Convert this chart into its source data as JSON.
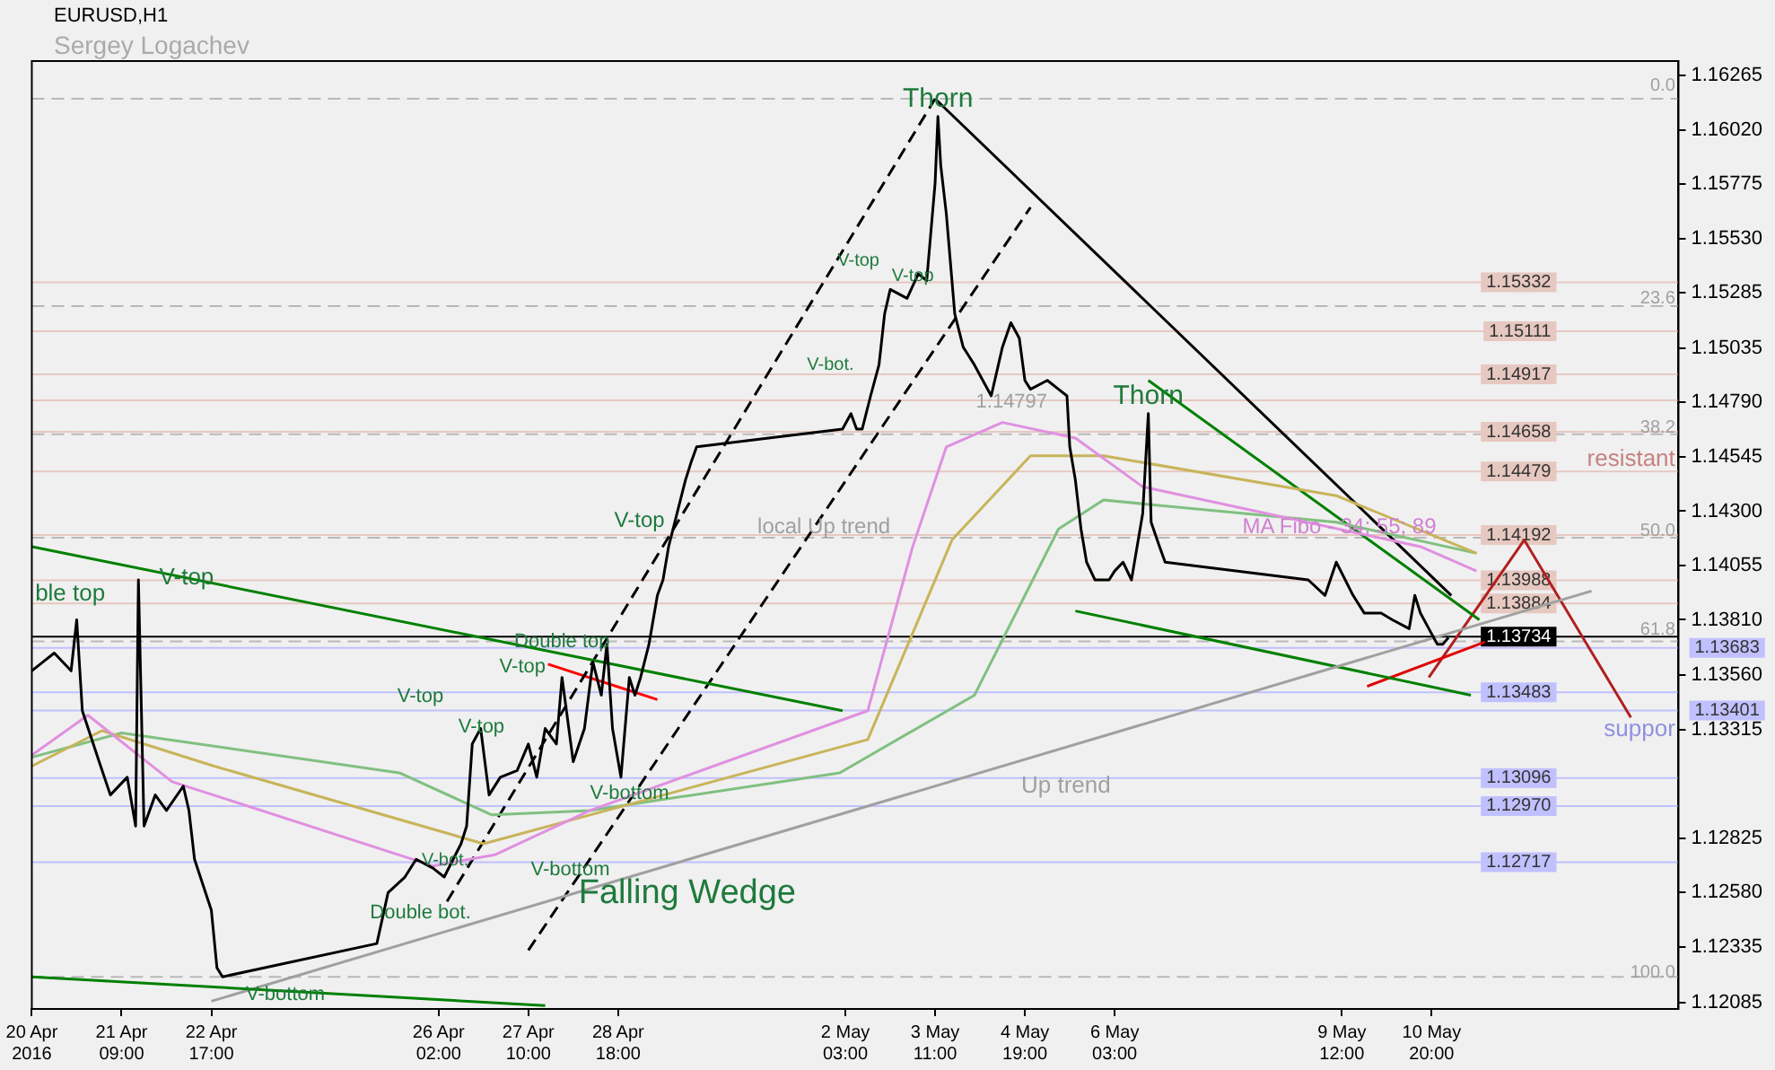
{
  "chart_data": {
    "type": "line",
    "title": "EURUSD,H1",
    "subtitle": "Sergey Logachev",
    "xlim": [
      "2016-04-20T01:00",
      "2016-05-14T12:00"
    ],
    "ylim": [
      1.12055,
      1.1633
    ],
    "xticks": [
      {
        "value": "2016-04-20T01:00",
        "label": "20 Apr 2016"
      },
      {
        "value": "2016-04-21T09:00",
        "label": "21 Apr 09:00"
      },
      {
        "value": "2016-04-22T17:00",
        "label": "22 Apr 17:00"
      },
      {
        "value": "2016-04-26T02:00",
        "label": "26 Apr 02:00"
      },
      {
        "value": "2016-04-27T10:00",
        "label": "27 Apr 10:00"
      },
      {
        "value": "2016-04-28T18:00",
        "label": "28 Apr 18:00"
      },
      {
        "value": "2016-05-02T03:00",
        "label": "2 May 03:00"
      },
      {
        "value": "2016-05-03T11:00",
        "label": "3 May 11:00"
      },
      {
        "value": "2016-05-04T19:00",
        "label": "4 May 19:00"
      },
      {
        "value": "2016-05-06T03:00",
        "label": "6 May 03:00"
      },
      {
        "value": "2016-05-09T12:00",
        "label": "9 May 12:00"
      },
      {
        "value": "2016-05-10T20:00",
        "label": "10 May 20:00"
      }
    ],
    "yticks": [
      {
        "value": 1.16265,
        "label": "1.16265"
      },
      {
        "value": 1.1602,
        "label": "1.16020"
      },
      {
        "value": 1.15775,
        "label": "1.15775"
      },
      {
        "value": 1.1553,
        "label": "1.15530"
      },
      {
        "value": 1.15285,
        "label": "1.15285"
      },
      {
        "value": 1.15035,
        "label": "1.15035"
      },
      {
        "value": 1.1479,
        "label": "1.14790"
      },
      {
        "value": 1.14545,
        "label": "1.14545"
      },
      {
        "value": 1.143,
        "label": "1.14300"
      },
      {
        "value": 1.14055,
        "label": "1.14055"
      },
      {
        "value": 1.1381,
        "label": "1.13810"
      },
      {
        "value": 1.1356,
        "label": "1.13560"
      },
      {
        "value": 1.13315,
        "label": "1.13315"
      },
      {
        "value": 1.12825,
        "label": "1.12825"
      },
      {
        "value": 1.1258,
        "label": "1.12580"
      },
      {
        "value": 1.12335,
        "label": "1.12335"
      },
      {
        "value": 1.12085,
        "label": "1.12085"
      }
    ],
    "grid": false,
    "legend": false,
    "marker": "none",
    "series": [
      {
        "color": "#000000",
        "x": [
          "2016-04-20T01:00",
          "2016-04-20T05:00",
          "2016-04-20T09:00",
          "2016-04-20T15:00",
          "2016-04-20T17:00",
          "2016-04-20T19:00",
          "2016-04-21T01:00",
          "2016-04-21T05:00",
          "2016-04-21T11:00",
          "2016-04-21T14:00",
          "2016-04-21T15:00",
          "2016-04-21T17:00",
          "2016-04-21T21:00",
          "2016-04-22T01:00",
          "2016-04-22T07:00",
          "2016-04-22T09:00",
          "2016-04-22T11:00",
          "2016-04-22T17:00",
          "2016-04-22T19:00",
          "2016-04-22T21:00",
          "2016-04-25T04:00",
          "2016-04-25T08:00",
          "2016-04-25T14:00",
          "2016-04-25T18:00",
          "2016-04-26T00:00",
          "2016-04-26T04:00",
          "2016-04-26T10:00",
          "2016-04-26T12:00",
          "2016-04-26T14:00",
          "2016-04-26T17:00",
          "2016-04-26T20:00",
          "2016-04-27T00:00",
          "2016-04-27T06:00",
          "2016-04-27T10:00",
          "2016-04-27T13:00",
          "2016-04-27T16:00",
          "2016-04-27T20:00",
          "2016-04-27T22:00",
          "2016-04-28T02:00",
          "2016-04-28T06:00",
          "2016-04-28T09:00",
          "2016-04-28T12:00",
          "2016-04-28T14:00",
          "2016-04-28T16:00",
          "2016-04-28T19:00",
          "2016-04-28T22:00",
          "2016-04-29T00:00",
          "2016-04-29T02:00",
          "2016-04-29T05:00",
          "2016-04-29T08:00",
          "2016-04-29T10:00",
          "2016-04-29T12:00",
          "2016-04-29T15:00",
          "2016-04-29T18:00",
          "2016-04-29T20:00",
          "2016-04-29T22:00",
          "2016-05-02T02:00",
          "2016-05-02T05:00",
          "2016-05-02T07:00",
          "2016-05-02T09:00",
          "2016-05-02T12:00",
          "2016-05-02T15:00",
          "2016-05-02T17:00",
          "2016-05-02T19:00",
          "2016-05-03T01:00",
          "2016-05-03T05:00",
          "2016-05-03T08:00",
          "2016-05-03T11:00",
          "2016-05-03T12:00",
          "2016-05-03T13:00",
          "2016-05-03T15:00",
          "2016-05-03T18:00",
          "2016-05-03T21:00",
          "2016-05-03T23:00",
          "2016-05-04T01:00",
          "2016-05-04T04:00",
          "2016-05-04T07:00",
          "2016-05-04T11:00",
          "2016-05-04T14:00",
          "2016-05-04T17:00",
          "2016-05-04T19:00",
          "2016-05-04T21:00",
          "2016-05-05T03:00",
          "2016-05-05T07:00",
          "2016-05-05T10:00",
          "2016-05-05T11:00",
          "2016-05-05T13:00",
          "2016-05-05T15:00",
          "2016-05-05T17:00",
          "2016-05-05T20:00",
          "2016-05-05T23:00",
          "2016-05-06T01:00",
          "2016-05-06T03:00",
          "2016-05-06T06:00",
          "2016-05-06T09:00",
          "2016-05-06T11:00",
          "2016-05-06T13:00",
          "2016-05-06T15:00",
          "2016-05-06T16:00",
          "2016-05-06T19:00",
          "2016-05-06T21:00",
          "2016-05-09T00:00",
          "2016-05-09T06:00",
          "2016-05-09T10:00",
          "2016-05-09T16:00",
          "2016-05-09T20:00",
          "2016-05-10T02:00",
          "2016-05-10T06:00",
          "2016-05-10T12:00",
          "2016-05-10T14:00",
          "2016-05-10T16:00",
          "2016-05-10T19:00",
          "2016-05-10T22:00",
          "2016-05-11T00:00",
          "2016-05-11T02:00"
        ],
        "values": [
          1.1358,
          1.1362,
          1.1366,
          1.1358,
          1.1381,
          1.134,
          1.1317,
          1.1302,
          1.131,
          1.1288,
          1.1399,
          1.1288,
          1.1302,
          1.1295,
          1.1306,
          1.1295,
          1.1273,
          1.125,
          1.1224,
          1.122,
          1.1235,
          1.1258,
          1.1265,
          1.1273,
          1.1269,
          1.1265,
          1.128,
          1.1288,
          1.1325,
          1.1332,
          1.1302,
          1.131,
          1.1313,
          1.1325,
          1.131,
          1.1332,
          1.1325,
          1.1355,
          1.1317,
          1.1332,
          1.1362,
          1.1347,
          1.137,
          1.1332,
          1.131,
          1.1355,
          1.1347,
          1.1355,
          1.137,
          1.1392,
          1.1399,
          1.1414,
          1.1429,
          1.1444,
          1.1452,
          1.1459,
          1.1467,
          1.1474,
          1.1467,
          1.1467,
          1.1482,
          1.1496,
          1.1519,
          1.153,
          1.1526,
          1.1537,
          1.1534,
          1.1578,
          1.1608,
          1.1586,
          1.1564,
          1.1519,
          1.1504,
          1.15,
          1.1496,
          1.1489,
          1.1482,
          1.1504,
          1.1515,
          1.1508,
          1.1489,
          1.1485,
          1.1489,
          1.1485,
          1.1482,
          1.1459,
          1.1444,
          1.1422,
          1.1407,
          1.1399,
          1.1399,
          1.1399,
          1.1403,
          1.1407,
          1.1399,
          1.1414,
          1.1429,
          1.1474,
          1.1425,
          1.1414,
          1.1407,
          1.1399,
          1.1392,
          1.1407,
          1.1392,
          1.1384,
          1.1384,
          1.1381,
          1.1377,
          1.1392,
          1.1384,
          1.1377,
          1.137,
          1.137,
          1.1373
        ]
      },
      {
        "color": "#e090e0",
        "x": [
          "2016-04-20T01:00",
          "2016-04-20T21:00",
          "2016-04-22T03:00",
          "2016-04-26T00:00",
          "2016-04-26T22:00",
          "2016-04-28T08:00",
          "2016-05-02T11:00",
          "2016-05-03T03:00",
          "2016-05-03T15:00",
          "2016-05-04T11:00",
          "2016-05-05T13:00",
          "2016-05-06T13:00",
          "2016-05-10T16:00",
          "2016-05-11T12:00"
        ],
        "values": [
          1.132,
          1.1338,
          1.1308,
          1.127,
          1.1275,
          1.1295,
          1.134,
          1.1414,
          1.1459,
          1.147,
          1.1463,
          1.1441,
          1.1414,
          1.1403
        ]
      },
      {
        "color": "#c8b45a",
        "x": [
          "2016-04-20T01:00",
          "2016-04-21T02:00",
          "2016-04-22T18:00",
          "2016-04-26T18:00",
          "2016-04-28T08:00",
          "2016-05-02T11:00",
          "2016-05-03T17:00",
          "2016-05-04T21:00",
          "2016-05-05T23:00",
          "2016-05-09T10:00",
          "2016-05-11T12:00"
        ],
        "values": [
          1.1315,
          1.1331,
          1.1315,
          1.128,
          1.1293,
          1.1327,
          1.1417,
          1.1455,
          1.1455,
          1.1437,
          1.1411
        ]
      },
      {
        "color": "#80c080",
        "x": [
          "2016-04-20T01:00",
          "2016-04-21T09:00",
          "2016-04-25T12:00",
          "2016-04-26T21:00",
          "2016-04-28T08:00",
          "2016-05-02T01:00",
          "2016-05-04T01:00",
          "2016-05-05T07:00",
          "2016-05-05T23:00",
          "2016-05-09T10:00",
          "2016-05-11T12:00"
        ],
        "values": [
          1.1319,
          1.133,
          1.1312,
          1.1293,
          1.1295,
          1.1312,
          1.1347,
          1.1422,
          1.1435,
          1.1425,
          1.1411
        ]
      },
      {
        "color": "#008000",
        "x": [
          "2016-04-20T01:00",
          "2016-05-02T02:00"
        ],
        "values": [
          1.1414,
          1.134
        ]
      },
      {
        "color": "#008000",
        "x": [
          "2016-04-20T01:00",
          "2016-04-27T16:00"
        ],
        "values": [
          1.122,
          1.1207
        ]
      },
      {
        "color": "#a0a0a0",
        "x": [
          "2016-04-22T17:00",
          "2016-05-13T05:00"
        ],
        "values": [
          1.1209,
          1.1394
        ]
      },
      {
        "color": "#008000",
        "x": [
          "2016-05-06T15:00",
          "2016-05-11T13:00"
        ],
        "values": [
          1.1489,
          1.1381
        ]
      },
      {
        "color": "#008000",
        "x": [
          "2016-05-05T13:00",
          "2016-05-11T10:00"
        ],
        "values": [
          1.1385,
          1.1347
        ]
      },
      {
        "color": "#000000",
        "x": [
          "2016-05-03T11:00",
          "2016-05-11T03:00"
        ],
        "values": [
          1.1616,
          1.1392
        ]
      },
      {
        "color": "#000000",
        "line_style": "dashed",
        "x": [
          "2016-04-26T05:00",
          "2016-05-03T11:00"
        ],
        "values": [
          1.1254,
          1.1616
        ]
      },
      {
        "color": "#000000",
        "line_style": "dashed",
        "x": [
          "2016-04-27T10:00",
          "2016-05-04T21:00"
        ],
        "values": [
          1.1232,
          1.1567
        ]
      },
      {
        "color": "#ff0000",
        "x": [
          "2016-04-27T17:00",
          "2016-04-29T08:00"
        ],
        "values": [
          1.1361,
          1.1345
        ]
      },
      {
        "color": "#e00000",
        "x": [
          "2016-05-09T21:00",
          "2016-05-11T15:00"
        ],
        "values": [
          1.1351,
          1.1371
        ]
      },
      {
        "color": "#b02020",
        "x": [
          "2016-05-10T19:00",
          "2016-05-12T05:00",
          "2016-05-13T19:00"
        ],
        "values": [
          1.1355,
          1.1417,
          1.1337
        ]
      }
    ],
    "ref_lines": [
      {
        "axis": "y",
        "value": 1.1616,
        "label": null,
        "color": "#b8b8b8",
        "line_style": "dashed"
      },
      {
        "axis": "y",
        "value": 1.15225,
        "label": null,
        "color": "#b8b8b8",
        "line_style": "dashed"
      },
      {
        "axis": "y",
        "value": 1.14647,
        "label": null,
        "color": "#b8b8b8",
        "line_style": "dashed"
      },
      {
        "axis": "y",
        "value": 1.1418,
        "label": null,
        "color": "#b8b8b8",
        "line_style": "dashed"
      },
      {
        "axis": "y",
        "value": 1.13713,
        "label": null,
        "color": "#b8b8b8",
        "line_style": "dashed"
      },
      {
        "axis": "y",
        "value": 1.122,
        "label": null,
        "color": "#b8b8b8",
        "line_style": "dashed"
      },
      {
        "axis": "y",
        "value": 1.15332,
        "label": "1.15332",
        "color": "#e6c8c0",
        "line_style": "solid"
      },
      {
        "axis": "y",
        "value": 1.15111,
        "label": "1.15111",
        "color": "#e6c8c0",
        "line_style": "solid"
      },
      {
        "axis": "y",
        "value": 1.14917,
        "label": "1.14917",
        "color": "#e6c8c0",
        "line_style": "solid"
      },
      {
        "axis": "y",
        "value": 1.148,
        "label": null,
        "color": "#e6c8c0",
        "line_style": "solid"
      },
      {
        "axis": "y",
        "value": 1.14658,
        "label": "1.14658",
        "color": "#e6c8c0",
        "line_style": "solid"
      },
      {
        "axis": "y",
        "value": 1.14479,
        "label": "1.14479",
        "color": "#e6c8c0",
        "line_style": "solid"
      },
      {
        "axis": "y",
        "value": 1.14192,
        "label": "1.14192",
        "color": "#e6c8c0",
        "line_style": "solid"
      },
      {
        "axis": "y",
        "value": 1.13988,
        "label": "1.13988",
        "color": "#e6c8c0",
        "line_style": "solid"
      },
      {
        "axis": "y",
        "value": 1.13884,
        "label": "1.13884",
        "color": "#e6c8c0",
        "line_style": "solid"
      },
      {
        "axis": "y",
        "value": 1.13734,
        "label": "1.13734",
        "color": "#000000",
        "line_style": "solid"
      },
      {
        "axis": "y",
        "value": 1.13683,
        "label": "1.13683",
        "color": "#c0c0ff",
        "line_style": "solid"
      },
      {
        "axis": "y",
        "value": 1.13483,
        "label": "1.13483",
        "color": "#c0c0ff",
        "line_style": "solid"
      },
      {
        "axis": "y",
        "value": 1.13401,
        "label": "1.13401",
        "color": "#c0c0ff",
        "line_style": "solid"
      },
      {
        "axis": "y",
        "value": 1.13096,
        "label": "1.13096",
        "color": "#c0c0ff",
        "line_style": "solid"
      },
      {
        "axis": "y",
        "value": 1.1297,
        "label": "1.12970",
        "color": "#c0c0ff",
        "line_style": "solid"
      },
      {
        "axis": "y",
        "value": 1.12717,
        "label": "1.12717",
        "color": "#c0c0ff",
        "line_style": "solid"
      }
    ],
    "annotations": [
      {
        "text": "Thorn",
        "x": "2016-05-03T12:00",
        "y": 1.1608
      },
      {
        "text": "Thorn",
        "x": "2016-05-06T15:00",
        "y": 1.1474
      },
      "ble top",
      "V-top",
      "V-top",
      "V-top",
      "V-top",
      "Double top",
      "V-bot.",
      "Double bot.",
      "V-bottom",
      "V-bottom",
      "V-bottom",
      "Falling Wedge",
      "Up trend",
      "local Up trend",
      "V-top",
      "V-bot.",
      "V-top",
      "V-top",
      "1.14797",
      "MA Fibo - 34; 55; 89",
      "resistant",
      "suppor",
      "0.0",
      "23.6",
      "38.2",
      "50.0",
      "61.8",
      "100.0"
    ]
  }
}
